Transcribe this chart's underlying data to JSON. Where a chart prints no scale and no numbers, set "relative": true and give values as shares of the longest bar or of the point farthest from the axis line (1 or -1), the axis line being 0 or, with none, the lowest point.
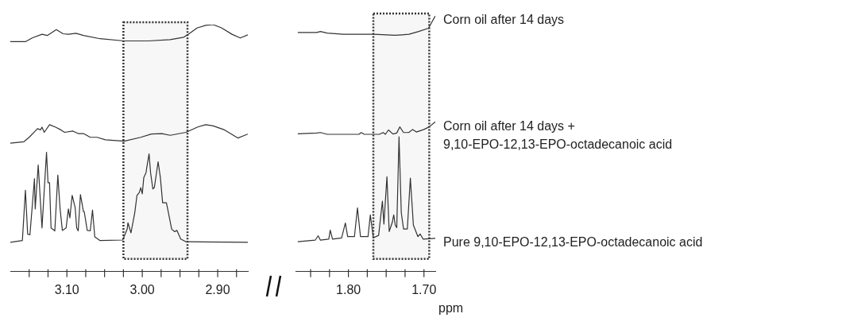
{
  "chart_data": [
    {
      "type": "line",
      "relative": true,
      "xlim": [
        3.175,
        2.86
      ],
      "xticks": [
        {
          "value": 3.15,
          "label": null
        },
        {
          "value": 3.125,
          "label": null
        },
        {
          "value": 3.1,
          "label": "3.10"
        },
        {
          "value": 3.075,
          "label": null
        },
        {
          "value": 3.05,
          "label": null
        },
        {
          "value": 3.025,
          "label": null
        },
        {
          "value": 3.0,
          "label": "3.00"
        },
        {
          "value": 2.975,
          "label": null
        },
        {
          "value": 2.95,
          "label": null
        },
        {
          "value": 2.925,
          "label": null
        },
        {
          "value": 2.9,
          "label": "2.90"
        },
        {
          "value": 2.875,
          "label": null
        }
      ],
      "tick_labels": "x",
      "legend": false,
      "marker": "none",
      "bands": [
        {
          "axis": "x",
          "from": 3.025,
          "to": 2.94,
          "color": "#333333"
        }
      ],
      "series": [
        {
          "color": "#333333",
          "x": [
            3.175,
            3.155,
            3.146,
            3.133,
            3.126,
            3.114,
            3.105,
            3.098,
            3.088,
            3.078,
            3.056,
            3.024,
            2.992,
            2.963,
            2.945,
            2.938,
            2.927,
            2.916,
            2.906,
            2.895,
            2.881,
            2.87,
            2.86
          ],
          "values": [
            0.931,
            0.931,
            0.946,
            0.961,
            0.956,
            0.98,
            0.963,
            0.961,
            0.965,
            0.956,
            0.943,
            0.934,
            0.934,
            0.939,
            0.949,
            0.963,
            0.987,
            0.997,
            1.0,
            0.987,
            0.961,
            0.946,
            0.959
          ]
        },
        {
          "color": "#333333",
          "x": [
            3.175,
            3.157,
            3.15,
            3.142,
            3.139,
            3.135,
            3.133,
            3.13,
            3.123,
            3.115,
            3.108,
            3.103,
            3.092,
            3.085,
            3.078,
            3.069,
            3.06,
            3.049,
            3.024,
            3.002,
            2.988,
            2.974,
            2.963,
            2.942,
            2.927,
            2.916,
            2.906,
            2.891,
            2.873,
            2.86
          ],
          "values": [
            0.52,
            0.526,
            0.544,
            0.569,
            0.579,
            0.574,
            0.585,
            0.564,
            0.595,
            0.585,
            0.574,
            0.564,
            0.569,
            0.559,
            0.559,
            0.544,
            0.544,
            0.534,
            0.528,
            0.544,
            0.557,
            0.559,
            0.552,
            0.564,
            0.585,
            0.595,
            0.59,
            0.574,
            0.541,
            0.557
          ]
        },
        {
          "color": "#333333",
          "x": [
            3.175,
            3.159,
            3.155,
            3.152,
            3.149,
            3.143,
            3.142,
            3.138,
            3.133,
            3.127,
            3.125,
            3.123,
            3.121,
            3.116,
            3.112,
            3.109,
            3.106,
            3.101,
            3.098,
            3.096,
            3.093,
            3.089,
            3.087,
            3.085,
            3.082,
            3.078,
            3.077,
            3.073,
            3.069,
            3.066,
            3.063,
            3.056,
            3.026,
            3.02,
            3.019,
            3.015,
            3.01,
            3.007,
            3.004,
            3.002,
            3.0,
            2.998,
            2.995,
            2.994,
            2.991,
            2.989,
            2.986,
            2.984,
            2.979,
            2.976,
            2.973,
            2.968,
            2.966,
            2.961,
            2.957,
            2.954,
            2.949,
            2.942,
            2.86
          ],
          "values": [
            0.119,
            0.126,
            0.33,
            0.152,
            0.149,
            0.376,
            0.254,
            0.432,
            0.177,
            0.483,
            0.36,
            0.36,
            0.177,
            0.165,
            0.391,
            0.254,
            0.167,
            0.177,
            0.254,
            0.218,
            0.309,
            0.259,
            0.177,
            0.165,
            0.312,
            0.243,
            0.243,
            0.167,
            0.165,
            0.249,
            0.141,
            0.126,
            0.128,
            0.172,
            0.198,
            0.157,
            0.238,
            0.309,
            0.32,
            0.34,
            0.315,
            0.381,
            0.401,
            0.422,
            0.477,
            0.401,
            0.335,
            0.34,
            0.445,
            0.381,
            0.279,
            0.279,
            0.249,
            0.172,
            0.162,
            0.167,
            0.132,
            0.121,
            0.119
          ]
        }
      ]
    },
    {
      "type": "line",
      "relative": true,
      "xlim": [
        1.87,
        1.685
      ],
      "xticks": [
        {
          "value": 1.85,
          "label": null
        },
        {
          "value": 1.825,
          "label": null
        },
        {
          "value": 1.8,
          "label": "1.80"
        },
        {
          "value": 1.775,
          "label": null
        },
        {
          "value": 1.75,
          "label": null
        },
        {
          "value": 1.725,
          "label": null
        },
        {
          "value": 1.7,
          "label": "1.70"
        }
      ],
      "xlabel": "ppm",
      "tick_labels": "x",
      "legend": false,
      "marker": "none",
      "bands": [
        {
          "axis": "x",
          "from": 1.767,
          "to": 1.693,
          "color": "#333333"
        }
      ],
      "series": [
        {
          "name": "Corn oil after 14 days",
          "color": "#333333",
          "x": [
            1.867,
            1.842,
            1.837,
            1.828,
            1.807,
            1.766,
            1.738,
            1.72,
            1.707,
            1.694,
            1.685
          ],
          "values": [
            0.935,
            0.935,
            0.939,
            0.933,
            0.928,
            0.928,
            0.924,
            0.928,
            0.939,
            0.952,
            1.0
          ]
        },
        {
          "name": "Corn oil after 14 days +\n9,10-EPO-12,13-EPO-octadecanoic acid",
          "color": "#333333",
          "x": [
            1.867,
            1.842,
            1.837,
            1.828,
            1.786,
            1.783,
            1.779,
            1.759,
            1.754,
            1.751,
            1.747,
            1.741,
            1.736,
            1.732,
            1.727,
            1.72,
            1.715,
            1.71,
            1.7,
            1.693,
            1.685
          ],
          "values": [
            0.539,
            0.542,
            0.544,
            0.537,
            0.537,
            0.544,
            0.537,
            0.537,
            0.544,
            0.537,
            0.554,
            0.538,
            0.542,
            0.566,
            0.544,
            0.544,
            0.556,
            0.546,
            0.556,
            0.566,
            0.586
          ]
        },
        {
          "name": "Pure 9,10-EPO-12,13-EPO-octadecanoic acid",
          "color": "#333333",
          "x": [
            1.867,
            1.844,
            1.84,
            1.837,
            1.826,
            1.824,
            1.821,
            1.809,
            1.804,
            1.801,
            1.792,
            1.788,
            1.784,
            1.774,
            1.771,
            1.767,
            1.76,
            1.755,
            1.753,
            1.749,
            1.746,
            1.742,
            1.74,
            1.738,
            1.736,
            1.733,
            1.73,
            1.727,
            1.722,
            1.718,
            1.714,
            1.708,
            1.705,
            1.701,
            1.685
          ],
          "values": [
            0.117,
            0.123,
            0.14,
            0.123,
            0.127,
            0.162,
            0.127,
            0.132,
            0.19,
            0.137,
            0.137,
            0.249,
            0.137,
            0.137,
            0.222,
            0.132,
            0.142,
            0.276,
            0.186,
            0.371,
            0.157,
            0.192,
            0.222,
            0.182,
            0.172,
            0.527,
            0.23,
            0.167,
            0.167,
            0.366,
            0.182,
            0.137,
            0.147,
            0.127,
            0.13
          ]
        }
      ]
    }
  ]
}
